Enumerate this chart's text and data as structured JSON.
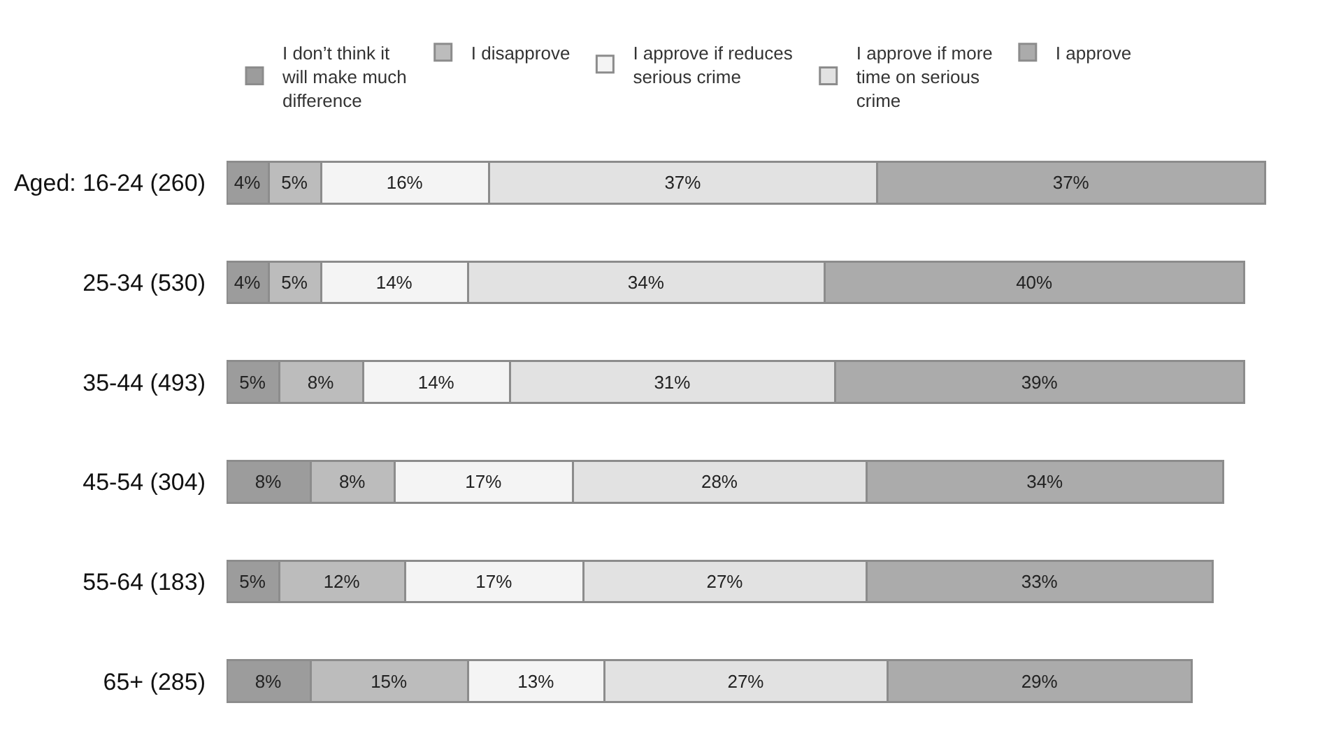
{
  "chart_data": {
    "type": "bar",
    "orientation": "horizontal",
    "stacked": true,
    "legend": "top",
    "grid": false,
    "tick_labels": "y",
    "categories": [
      "Aged: 16-24 (260)",
      "25-34 (530)",
      "35-44 (493)",
      "45-54 (304)",
      "55-64 (183)",
      "65+ (285)"
    ],
    "series": [
      {
        "name": "I don’t think it will make much difference",
        "color": "#9c9c9c",
        "values": [
          4,
          4,
          5,
          8,
          5,
          8
        ],
        "value_labels": [
          "4%",
          "4%",
          "5%",
          "8%",
          "5%",
          "8%"
        ]
      },
      {
        "name": "I disapprove",
        "color": "#bcbcbc",
        "values": [
          5,
          5,
          8,
          8,
          12,
          15
        ],
        "value_labels": [
          "5%",
          "5%",
          "8%",
          "8%",
          "12%",
          "15%"
        ]
      },
      {
        "name": "I approve if reduces serious crime",
        "color": "#f4f4f4",
        "values": [
          16,
          14,
          14,
          17,
          17,
          13
        ],
        "value_labels": [
          "16%",
          "14%",
          "14%",
          "17%",
          "17%",
          "13%"
        ]
      },
      {
        "name": "I approve if more time on serious crime",
        "color": "#e2e2e2",
        "values": [
          37,
          34,
          31,
          28,
          27,
          27
        ],
        "value_labels": [
          "37%",
          "34%",
          "31%",
          "28%",
          "27%",
          "27%"
        ]
      },
      {
        "name": "I approve",
        "color": "#ababab",
        "values": [
          37,
          40,
          39,
          34,
          33,
          29
        ],
        "value_labels": [
          "37%",
          "40%",
          "39%",
          "34%",
          "33%",
          "29%"
        ]
      }
    ]
  }
}
